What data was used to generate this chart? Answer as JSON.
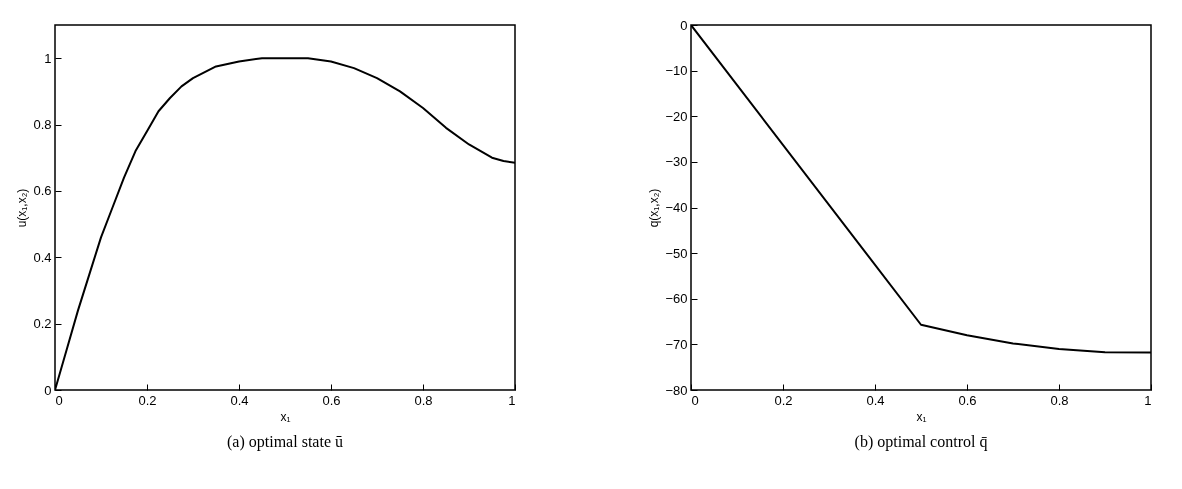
{
  "chart_data": [
    {
      "type": "line",
      "title": "(a) optimal state ū",
      "xlabel": "x₁",
      "ylabel": "u(x₁,x₂)",
      "x": [
        0,
        0.025,
        0.05,
        0.075,
        0.1,
        0.125,
        0.15,
        0.175,
        0.2,
        0.225,
        0.25,
        0.275,
        0.3,
        0.35,
        0.4,
        0.45,
        0.5,
        0.55,
        0.6,
        0.65,
        0.7,
        0.75,
        0.8,
        0.85,
        0.9,
        0.95,
        0.975,
        1
      ],
      "series": [
        {
          "color": "#000000",
          "values": [
            0,
            0.12,
            0.24,
            0.35,
            0.46,
            0.55,
            0.64,
            0.72,
            0.78,
            0.84,
            0.88,
            0.915,
            0.94,
            0.975,
            0.99,
            1.0,
            1.0,
            1.0,
            0.99,
            0.97,
            0.94,
            0.9,
            0.85,
            0.79,
            0.74,
            0.7,
            0.69,
            0.685
          ]
        }
      ],
      "xlim": [
        0,
        1
      ],
      "xticks": [
        0,
        0.2,
        0.4,
        0.6,
        0.8,
        1
      ],
      "ylim": [
        0,
        1.1
      ],
      "yticks": [
        0,
        0.2,
        0.4,
        0.6,
        0.8,
        1
      ],
      "grid": false
    },
    {
      "type": "line",
      "title": "(b) optimal control q̄",
      "xlabel": "x₁",
      "ylabel": "q(x₁,x₂)",
      "x": [
        0,
        0.5,
        0.6,
        0.7,
        0.8,
        0.9,
        1
      ],
      "series": [
        {
          "color": "#000000",
          "values": [
            0,
            -65.7,
            -68,
            -69.8,
            -71,
            -71.7,
            -71.8
          ]
        }
      ],
      "xlim": [
        0,
        1
      ],
      "xticks": [
        0,
        0.2,
        0.4,
        0.6,
        0.8,
        1
      ],
      "ylim": [
        -80,
        0
      ],
      "yticks": [
        -80,
        -70,
        -60,
        -50,
        -40,
        -30,
        -20,
        -10,
        0
      ],
      "grid": false
    }
  ]
}
